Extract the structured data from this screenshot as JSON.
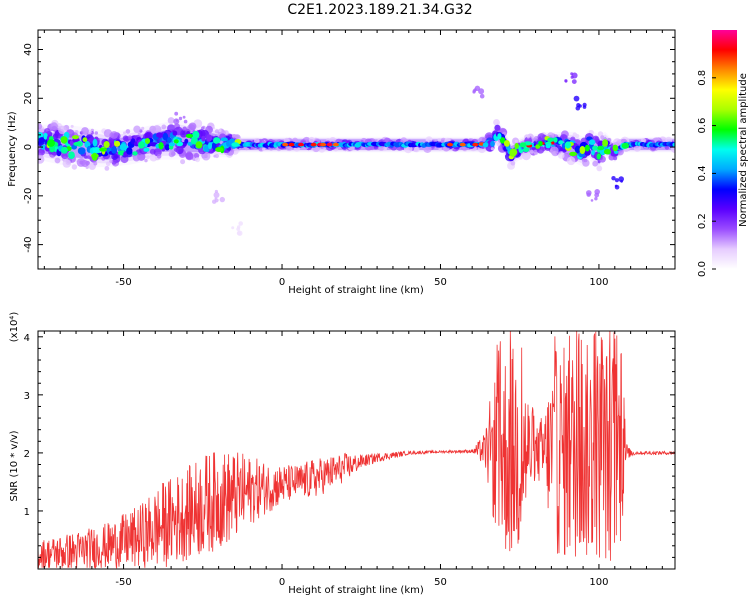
{
  "title": "C2E1.2023.189.21.34.G32",
  "chart_data": [
    {
      "type": "heatmap",
      "xlabel": "Height of straight line (km)",
      "ylabel": "Frequency (Hz)",
      "xlim": [
        -77,
        124
      ],
      "ylim": [
        -50,
        48
      ],
      "xticks": [
        -50,
        0,
        50,
        100
      ],
      "yticks": [
        -40,
        -20,
        0,
        20,
        40
      ],
      "ridge_profile": {
        "x": [
          -77,
          -70,
          -62,
          -55,
          -48,
          -40,
          -33,
          -27,
          -22,
          -17,
          -13,
          -8,
          0,
          10,
          20,
          40,
          55,
          62,
          66,
          68,
          70,
          72,
          76,
          80,
          84,
          88,
          92,
          95,
          97,
          100,
          102,
          105,
          108,
          112,
          124
        ],
        "freq_center": [
          2,
          1,
          0,
          -1,
          0,
          2,
          3,
          2,
          2,
          1,
          1,
          1,
          1,
          1,
          1,
          1,
          1,
          1,
          2,
          6,
          2,
          -3,
          0,
          1,
          2,
          1,
          0,
          -2,
          1,
          -2,
          1,
          -2,
          1,
          1,
          1
        ],
        "half_width": [
          6,
          7,
          7,
          6,
          6,
          6,
          7,
          6,
          5,
          4,
          2,
          2,
          2,
          2,
          2,
          2,
          2,
          2,
          3,
          4,
          4,
          4,
          3,
          3,
          3,
          4,
          5,
          5,
          5,
          6,
          4,
          3,
          2,
          2,
          2
        ]
      },
      "scattered_features": [
        {
          "x": -32,
          "freq": 12,
          "amp": 0.15
        },
        {
          "x": -20,
          "freq": -20,
          "amp": 0.1
        },
        {
          "x": -14,
          "freq": -33,
          "amp": 0.05
        },
        {
          "x": 62,
          "freq": 23,
          "amp": 0.15
        },
        {
          "x": 91,
          "freq": 28,
          "amp": 0.2
        },
        {
          "x": 94,
          "freq": 18,
          "amp": 0.3
        },
        {
          "x": 98,
          "freq": -20,
          "amp": 0.15
        },
        {
          "x": 106,
          "freq": -15,
          "amp": 0.3
        }
      ],
      "colorbar": {
        "label": "Normalized spectral amplitude",
        "ticks": [
          0.0,
          0.2,
          0.4,
          0.6,
          0.8
        ],
        "range": [
          0,
          1
        ],
        "stops": [
          "#ffffff",
          "#e6ccff",
          "#9a4cff",
          "#5a00ff",
          "#0000ff",
          "#00aaff",
          "#00ffee",
          "#00ff00",
          "#aaff00",
          "#ffff00",
          "#ff8800",
          "#ff0000",
          "#ff0099"
        ]
      }
    },
    {
      "type": "line",
      "xlabel": "Height of straight line (km)",
      "ylabel": "SNR (10 * v/v)",
      "scale_label": "(x10⁴)",
      "xlim": [
        -77,
        124
      ],
      "ylim": [
        0,
        4.1
      ],
      "xticks": [
        -50,
        0,
        50,
        100
      ],
      "yticks": [
        1,
        2,
        3,
        4
      ],
      "color": "#ef3333",
      "envelope": {
        "x": [
          -77,
          -65,
          -55,
          -45,
          -38,
          -30,
          -25,
          -20,
          -15,
          -10,
          -5,
          0,
          5,
          10,
          15,
          20,
          25,
          30,
          40,
          50,
          60,
          64,
          66,
          68,
          70,
          72,
          75,
          80,
          83,
          86,
          90,
          95,
          100,
          104,
          107,
          109,
          112,
          124
        ],
        "base": [
          0.25,
          0.3,
          0.4,
          0.55,
          0.75,
          0.95,
          1.1,
          1.2,
          1.25,
          1.35,
          1.4,
          1.45,
          1.5,
          1.55,
          1.65,
          1.75,
          1.85,
          1.92,
          2.0,
          2.02,
          2.03,
          2.05,
          2.05,
          2.0,
          2.0,
          2.0,
          2.0,
          2.0,
          2.0,
          2.0,
          2.0,
          2.0,
          2.0,
          2.0,
          2.0,
          2.0,
          2.0,
          2.0
        ],
        "amp": [
          0.25,
          0.35,
          0.4,
          0.55,
          0.75,
          0.8,
          0.9,
          0.85,
          0.8,
          0.6,
          0.45,
          0.35,
          0.3,
          0.35,
          0.3,
          0.25,
          0.12,
          0.08,
          0.03,
          0.02,
          0.03,
          0.3,
          1.0,
          1.6,
          1.8,
          1.9,
          1.8,
          0.4,
          0.8,
          1.8,
          1.9,
          1.9,
          1.9,
          1.9,
          1.6,
          0.1,
          0.03,
          0.03
        ]
      },
      "peak_max": 4.1
    }
  ]
}
